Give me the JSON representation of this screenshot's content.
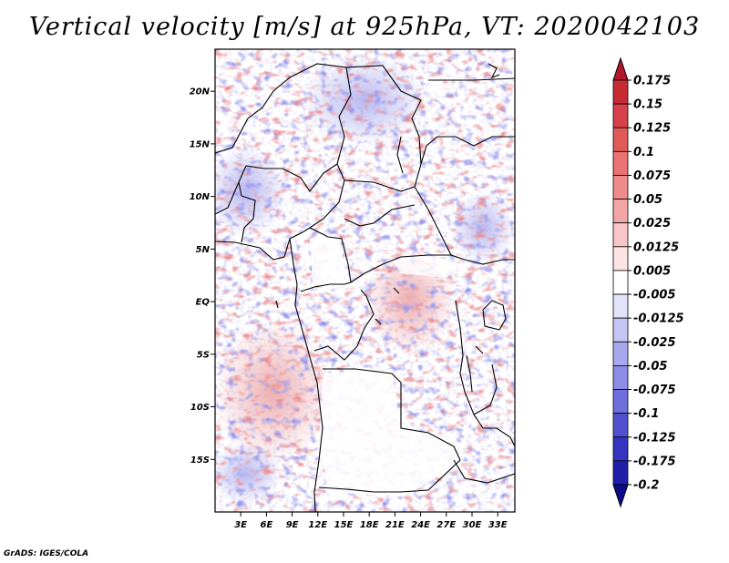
{
  "title": "Vertical velocity [m/s] at 925hPa, VT: 2020042103",
  "credit": "GrADS: IGES/COLA",
  "map": {
    "variable": "Vertical velocity",
    "units": "m/s",
    "level": "925hPa",
    "valid_time": "2020042103",
    "lat_labels": [
      "20N",
      "15N",
      "10N",
      "5N",
      "EQ",
      "5S",
      "10S",
      "15S"
    ],
    "lat_values": [
      20,
      15,
      10,
      5,
      0,
      -5,
      -10,
      -15
    ],
    "lon_labels": [
      "3E",
      "6E",
      "9E",
      "12E",
      "15E",
      "18E",
      "21E",
      "24E",
      "27E",
      "30E",
      "33E"
    ],
    "lon_values": [
      3,
      6,
      9,
      12,
      15,
      18,
      21,
      24,
      27,
      30,
      33
    ],
    "lat_range": [
      -20,
      24
    ],
    "lon_range": [
      0,
      35
    ]
  },
  "colorbar": {
    "labels": [
      "0.175",
      "0.15",
      "0.125",
      "0.1",
      "0.075",
      "0.05",
      "0.025",
      "0.0125",
      "0.005",
      "-0.005",
      "-0.0125",
      "-0.025",
      "-0.05",
      "-0.075",
      "-0.1",
      "-0.125",
      "-0.175",
      "-0.2"
    ],
    "colors": [
      "#b2182b",
      "#c62b33",
      "#d6404a",
      "#e05a5a",
      "#e97272",
      "#ef8b8b",
      "#f4a6a6",
      "#f8c6c6",
      "#fce4e4",
      "#ffffff",
      "#e2e2fb",
      "#c6c6f5",
      "#a8a8ee",
      "#8c8ce6",
      "#6e6edd",
      "#5050d0",
      "#3434c0",
      "#1e1eaa",
      "#0c0c8a"
    ]
  },
  "chart_data": {
    "type": "heatmap",
    "title": "Vertical velocity [m/s] at 925hPa, VT: 2020042103",
    "x_ticks": [
      "3E",
      "6E",
      "9E",
      "12E",
      "15E",
      "18E",
      "21E",
      "24E",
      "27E",
      "30E",
      "33E"
    ],
    "y_ticks": [
      "20N",
      "15N",
      "10N",
      "5N",
      "EQ",
      "5S",
      "10S",
      "15S"
    ],
    "x_range_deg_east": [
      0,
      35
    ],
    "y_range_deg_north": [
      -20,
      24
    ],
    "color_levels": [
      0.175,
      0.15,
      0.125,
      0.1,
      0.075,
      0.05,
      0.025,
      0.0125,
      0.005,
      -0.005,
      -0.0125,
      -0.025,
      -0.05,
      -0.075,
      -0.1,
      -0.125,
      -0.175,
      -0.2
    ],
    "units": "m/s"
  }
}
